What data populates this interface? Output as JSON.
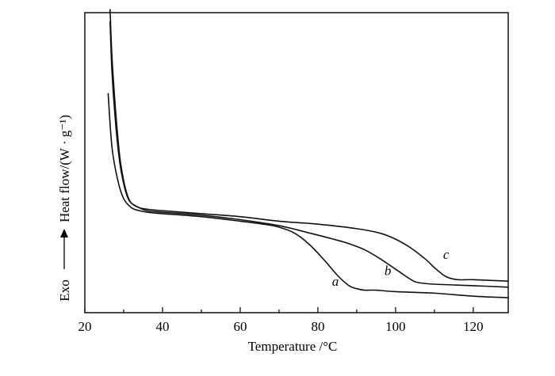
{
  "chart_data": {
    "type": "line",
    "xlabel": "Temperature /°C",
    "ylabel": "Heat flow/(W · g⁻¹)",
    "ylabel_exo": "Exo",
    "xlim": [
      20,
      129
    ],
    "ylim": [
      0,
      100
    ],
    "x_ticks": [
      "20",
      "40",
      "60",
      "80",
      "100",
      "120"
    ],
    "y_ticks_shown": false,
    "grid": false,
    "legend": "none",
    "series": [
      {
        "name": "a",
        "x": [
          26.0,
          27.0,
          28.5,
          30.0,
          32.0,
          34.0,
          36.0,
          40.0,
          50.0,
          60.0,
          66.0,
          70.0,
          74.0,
          78.0,
          82.0,
          85.0,
          88.0,
          90.0,
          92.0,
          95.0,
          100.0,
          110.0,
          120.0,
          129.0
        ],
        "y": [
          73.0,
          55.0,
          44.0,
          38.0,
          35.0,
          34.0,
          33.5,
          33.0,
          32.0,
          30.5,
          29.5,
          28.5,
          26.5,
          22.5,
          17.0,
          12.5,
          9.0,
          8.0,
          7.5,
          7.5,
          7.0,
          6.5,
          5.5,
          5.0
        ]
      },
      {
        "name": "b",
        "x": [
          26.5,
          27.0,
          28.0,
          29.0,
          30.0,
          31.0,
          32.0,
          34.0,
          36.0,
          40.0,
          50.0,
          60.0,
          70.0,
          78.0,
          84.0,
          88.0,
          92.0,
          96.0,
          100.0,
          104.0,
          106.0,
          110.0,
          120.0,
          129.0
        ],
        "y": [
          97.0,
          80.0,
          62.0,
          50.0,
          43.0,
          38.5,
          36.5,
          35.0,
          34.0,
          33.5,
          32.5,
          31.0,
          29.0,
          26.5,
          24.5,
          23.0,
          21.0,
          18.0,
          14.5,
          11.0,
          10.0,
          9.5,
          9.0,
          8.5
        ]
      },
      {
        "name": "c",
        "x": [
          26.5,
          27.0,
          28.0,
          29.0,
          30.0,
          31.0,
          32.0,
          34.0,
          36.0,
          40.0,
          50.0,
          60.0,
          70.0,
          80.0,
          90.0,
          96.0,
          100.0,
          104.0,
          108.0,
          110.0,
          113.0,
          116.0,
          120.0,
          129.0
        ],
        "y": [
          101.0,
          85.0,
          66.0,
          52.0,
          44.0,
          39.0,
          36.5,
          35.0,
          34.5,
          34.0,
          33.0,
          32.0,
          30.5,
          29.5,
          28.0,
          26.5,
          24.5,
          21.5,
          17.5,
          15.0,
          12.0,
          11.0,
          11.0,
          10.5
        ]
      }
    ],
    "annotations": [
      {
        "text": "a",
        "x": 84.5,
        "y": 9.0
      },
      {
        "text": "b",
        "x": 98.0,
        "y": 12.5
      },
      {
        "text": "c",
        "x": 113.0,
        "y": 18.0
      }
    ]
  }
}
